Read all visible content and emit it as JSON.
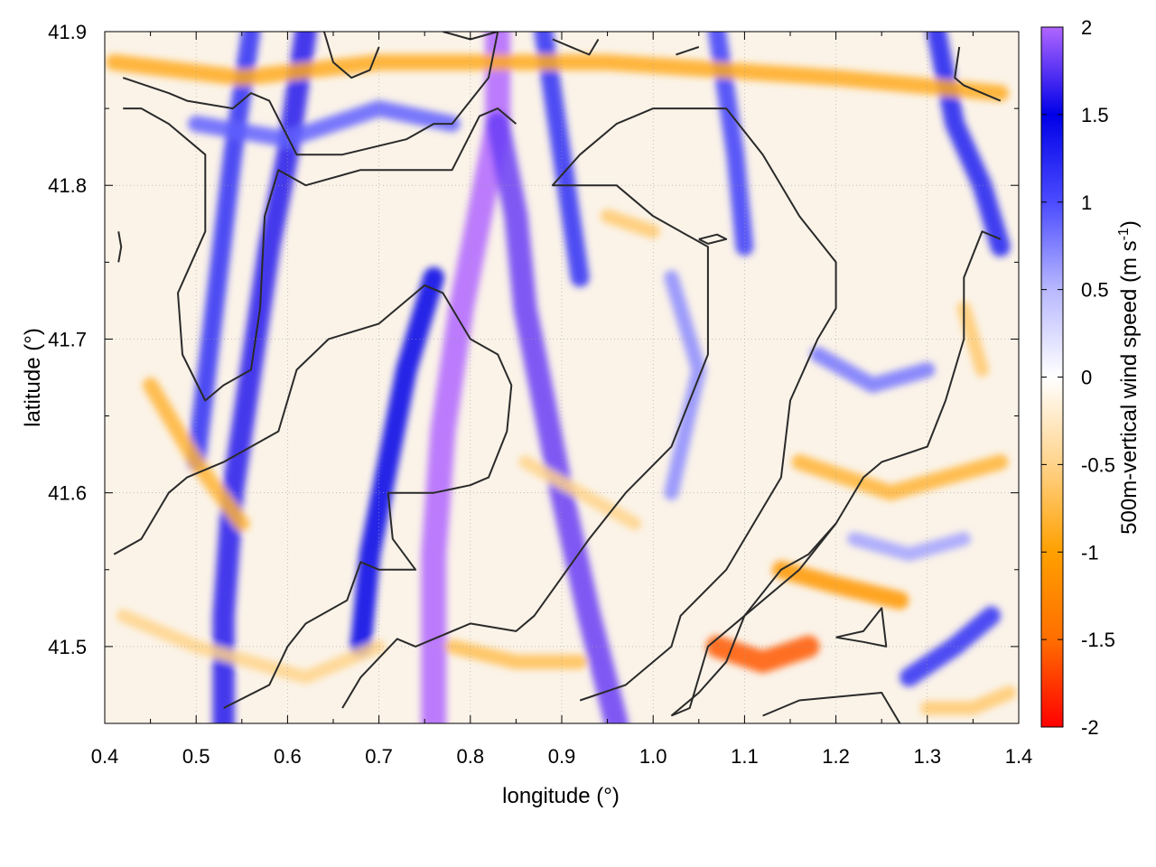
{
  "chart_data": {
    "type": "heatmap",
    "title": "",
    "xlabel": "longitude (°)",
    "ylabel": "latitude (°)",
    "xlim": [
      0.4,
      1.4
    ],
    "ylim": [
      41.45,
      41.9
    ],
    "x_ticks": [
      "0.4",
      "0.5",
      "0.6",
      "0.7",
      "0.8",
      "0.9",
      "1.0",
      "1.1",
      "1.2",
      "1.3",
      "1.4"
    ],
    "y_ticks": [
      "41.5",
      "41.6",
      "41.7",
      "41.8",
      "41.9"
    ],
    "grid": true,
    "colorbar": {
      "label": "500m-vertical wind speed",
      "unit_prefix": "(m s",
      "unit_exp": "-1",
      "unit_suffix": ")",
      "range": [
        -2,
        2
      ],
      "ticks": [
        "2",
        "1.5",
        "1",
        "0.5",
        "0",
        "-0.5",
        "-1",
        "-1.5",
        "-2"
      ],
      "colors": [
        "#ff0000",
        "#ff6e00",
        "#ffa000",
        "#ffd38a",
        "#ffffff",
        "#b8b8ff",
        "#4b4bff",
        "#0000e8",
        "#b066ff"
      ]
    },
    "bands": [
      {
        "name": "band",
        "value": 2.0,
        "points": [
          [
            0.83,
            41.9
          ],
          [
            0.83,
            41.84
          ],
          [
            0.81,
            41.78
          ],
          [
            0.79,
            41.72
          ],
          [
            0.77,
            41.64
          ],
          [
            0.76,
            41.56
          ],
          [
            0.76,
            41.45
          ]
        ]
      },
      {
        "name": "band",
        "value": 1.8,
        "points": [
          [
            0.83,
            41.84
          ],
          [
            0.85,
            41.78
          ],
          [
            0.86,
            41.72
          ],
          [
            0.88,
            41.66
          ],
          [
            0.9,
            41.6
          ],
          [
            0.93,
            41.52
          ],
          [
            0.96,
            41.45
          ]
        ]
      },
      {
        "name": "band",
        "value": 1.6,
        "points": [
          [
            0.62,
            41.9
          ],
          [
            0.6,
            41.82
          ],
          [
            0.58,
            41.76
          ],
          [
            0.56,
            41.68
          ],
          [
            0.54,
            41.6
          ],
          [
            0.53,
            41.52
          ],
          [
            0.53,
            41.45
          ]
        ]
      },
      {
        "name": "band",
        "value": 1.5,
        "points": [
          [
            0.76,
            41.74
          ],
          [
            0.73,
            41.68
          ],
          [
            0.71,
            41.62
          ],
          [
            0.69,
            41.56
          ],
          [
            0.68,
            41.5
          ]
        ]
      },
      {
        "name": "band",
        "value": 1.2,
        "points": [
          [
            0.56,
            41.9
          ],
          [
            0.54,
            41.82
          ],
          [
            0.52,
            41.72
          ],
          [
            0.5,
            41.62
          ]
        ]
      },
      {
        "name": "band",
        "value": 1.2,
        "points": [
          [
            0.88,
            41.9
          ],
          [
            0.9,
            41.82
          ],
          [
            0.92,
            41.74
          ]
        ]
      },
      {
        "name": "band",
        "value": 1.3,
        "points": [
          [
            1.31,
            41.9
          ],
          [
            1.33,
            41.84
          ],
          [
            1.36,
            41.8
          ],
          [
            1.38,
            41.76
          ]
        ]
      },
      {
        "name": "band",
        "value": 1.1,
        "points": [
          [
            1.07,
            41.9
          ],
          [
            1.09,
            41.82
          ],
          [
            1.1,
            41.76
          ]
        ]
      },
      {
        "name": "band",
        "value": 1.2,
        "points": [
          [
            1.37,
            41.52
          ],
          [
            1.33,
            41.5
          ],
          [
            1.28,
            41.48
          ]
        ]
      },
      {
        "name": "band",
        "value": 0.9,
        "points": [
          [
            0.5,
            41.84
          ],
          [
            0.6,
            41.83
          ],
          [
            0.7,
            41.85
          ],
          [
            0.78,
            41.84
          ]
        ]
      },
      {
        "name": "band",
        "value": 0.8,
        "points": [
          [
            1.18,
            41.69
          ],
          [
            1.24,
            41.67
          ],
          [
            1.3,
            41.68
          ]
        ]
      },
      {
        "name": "band",
        "value": 0.7,
        "points": [
          [
            1.02,
            41.74
          ],
          [
            1.05,
            41.68
          ],
          [
            1.02,
            41.6
          ]
        ]
      },
      {
        "name": "band",
        "value": 0.6,
        "points": [
          [
            1.22,
            41.57
          ],
          [
            1.28,
            41.56
          ],
          [
            1.34,
            41.57
          ]
        ]
      },
      {
        "name": "band",
        "value": -1.6,
        "points": [
          [
            1.07,
            41.5
          ],
          [
            1.12,
            41.49
          ],
          [
            1.17,
            41.5
          ]
        ]
      },
      {
        "name": "band",
        "value": -1.1,
        "points": [
          [
            1.14,
            41.55
          ],
          [
            1.2,
            41.54
          ],
          [
            1.27,
            41.53
          ]
        ]
      },
      {
        "name": "band",
        "value": -0.9,
        "points": [
          [
            0.41,
            41.88
          ],
          [
            0.55,
            41.87
          ],
          [
            0.7,
            41.88
          ],
          [
            0.95,
            41.88
          ],
          [
            1.2,
            41.87
          ],
          [
            1.38,
            41.86
          ]
        ]
      },
      {
        "name": "band",
        "value": -0.8,
        "points": [
          [
            0.45,
            41.67
          ],
          [
            0.5,
            41.62
          ],
          [
            0.55,
            41.58
          ]
        ]
      },
      {
        "name": "band",
        "value": -0.8,
        "points": [
          [
            1.16,
            41.62
          ],
          [
            1.26,
            41.6
          ],
          [
            1.38,
            41.62
          ]
        ]
      },
      {
        "name": "band",
        "value": -0.7,
        "points": [
          [
            0.78,
            41.5
          ],
          [
            0.85,
            41.49
          ],
          [
            0.92,
            41.49
          ]
        ]
      },
      {
        "name": "band",
        "value": -0.6,
        "points": [
          [
            0.95,
            41.78
          ],
          [
            1.0,
            41.77
          ]
        ]
      },
      {
        "name": "band",
        "value": -0.6,
        "points": [
          [
            1.34,
            41.72
          ],
          [
            1.36,
            41.68
          ]
        ]
      },
      {
        "name": "band",
        "value": -0.5,
        "points": [
          [
            0.42,
            41.52
          ],
          [
            0.5,
            41.5
          ],
          [
            0.62,
            41.48
          ],
          [
            0.7,
            41.5
          ]
        ]
      },
      {
        "name": "band",
        "value": -0.5,
        "points": [
          [
            0.86,
            41.62
          ],
          [
            0.92,
            41.6
          ],
          [
            0.98,
            41.58
          ]
        ]
      },
      {
        "name": "band",
        "value": -0.6,
        "points": [
          [
            1.3,
            41.46
          ],
          [
            1.35,
            41.46
          ],
          [
            1.39,
            41.47
          ]
        ]
      }
    ],
    "contours": [
      {
        "points": [
          [
            0.42,
            41.87
          ],
          [
            0.47,
            41.86
          ],
          [
            0.49,
            41.855
          ],
          [
            0.54,
            41.85
          ],
          [
            0.56,
            41.86
          ],
          [
            0.58,
            41.855
          ],
          [
            0.61,
            41.82
          ],
          [
            0.66,
            41.82
          ],
          [
            0.73,
            41.83
          ],
          [
            0.76,
            41.84
          ],
          [
            0.78,
            41.84
          ],
          [
            0.8,
            41.855
          ],
          [
            0.82,
            41.87
          ],
          [
            0.83,
            41.9
          ]
        ]
      },
      {
        "points": [
          [
            0.42,
            41.85
          ],
          [
            0.44,
            41.85
          ],
          [
            0.47,
            41.84
          ],
          [
            0.51,
            41.82
          ],
          [
            0.51,
            41.77
          ],
          [
            0.48,
            41.73
          ],
          [
            0.485,
            41.69
          ],
          [
            0.51,
            41.66
          ],
          [
            0.53,
            41.67
          ],
          [
            0.56,
            41.68
          ],
          [
            0.57,
            41.72
          ],
          [
            0.575,
            41.78
          ],
          [
            0.59,
            41.81
          ],
          [
            0.62,
            41.8
          ],
          [
            0.68,
            41.81
          ],
          [
            0.78,
            41.81
          ],
          [
            0.81,
            41.845
          ],
          [
            0.83,
            41.85
          ],
          [
            0.85,
            41.84
          ]
        ]
      },
      {
        "points": [
          [
            0.41,
            41.56
          ],
          [
            0.44,
            41.57
          ],
          [
            0.47,
            41.6
          ],
          [
            0.49,
            41.61
          ],
          [
            0.53,
            41.62
          ],
          [
            0.59,
            41.64
          ],
          [
            0.61,
            41.68
          ],
          [
            0.645,
            41.7
          ],
          [
            0.7,
            41.71
          ],
          [
            0.75,
            41.735
          ],
          [
            0.77,
            41.73
          ],
          [
            0.8,
            41.7
          ],
          [
            0.83,
            41.69
          ],
          [
            0.845,
            41.67
          ],
          [
            0.84,
            41.64
          ],
          [
            0.82,
            41.61
          ],
          [
            0.8,
            41.605
          ],
          [
            0.76,
            41.6
          ],
          [
            0.71,
            41.6
          ],
          [
            0.715,
            41.57
          ],
          [
            0.74,
            41.55
          ],
          [
            0.735,
            41.55
          ],
          [
            0.7,
            41.55
          ],
          [
            0.68,
            41.555
          ],
          [
            0.665,
            41.53
          ],
          [
            0.62,
            41.515
          ],
          [
            0.6,
            41.5
          ],
          [
            0.58,
            41.475
          ],
          [
            0.53,
            41.46
          ]
        ]
      },
      {
        "points": [
          [
            0.66,
            41.46
          ],
          [
            0.68,
            41.48
          ],
          [
            0.72,
            41.505
          ],
          [
            0.74,
            41.5
          ],
          [
            0.8,
            41.515
          ],
          [
            0.85,
            41.51
          ],
          [
            0.87,
            41.52
          ],
          [
            0.9,
            41.545
          ],
          [
            0.93,
            41.57
          ],
          [
            0.97,
            41.6
          ],
          [
            1.02,
            41.63
          ],
          [
            1.06,
            41.69
          ],
          [
            1.06,
            41.76
          ],
          [
            1.0,
            41.78
          ],
          [
            0.96,
            41.8
          ],
          [
            0.89,
            41.8
          ],
          [
            0.92,
            41.82
          ],
          [
            0.96,
            41.84
          ],
          [
            1.0,
            41.85
          ],
          [
            1.08,
            41.85
          ],
          [
            1.12,
            41.82
          ],
          [
            1.16,
            41.78
          ],
          [
            1.2,
            41.75
          ],
          [
            1.2,
            41.72
          ],
          [
            1.18,
            41.7
          ],
          [
            1.15,
            41.66
          ],
          [
            1.14,
            41.61
          ],
          [
            1.12,
            41.59
          ],
          [
            1.08,
            41.55
          ],
          [
            1.03,
            41.52
          ],
          [
            1.02,
            41.5
          ],
          [
            1.0,
            41.49
          ],
          [
            0.97,
            41.475
          ],
          [
            0.92,
            41.465
          ]
        ]
      },
      {
        "points": [
          [
            1.02,
            41.455
          ],
          [
            1.04,
            41.46
          ],
          [
            1.06,
            41.5
          ],
          [
            1.1,
            41.52
          ],
          [
            1.16,
            41.55
          ],
          [
            1.2,
            41.58
          ],
          [
            1.23,
            41.61
          ],
          [
            1.25,
            41.62
          ],
          [
            1.3,
            41.63
          ],
          [
            1.32,
            41.66
          ],
          [
            1.34,
            41.7
          ],
          [
            1.34,
            41.74
          ],
          [
            1.36,
            41.77
          ],
          [
            1.38,
            41.765
          ]
        ]
      },
      {
        "points": [
          [
            1.02,
            41.455
          ],
          [
            1.05,
            41.47
          ],
          [
            1.08,
            41.49
          ],
          [
            1.1,
            41.52
          ],
          [
            1.14,
            41.55
          ],
          [
            1.17,
            41.56
          ],
          [
            1.2,
            41.58
          ]
        ]
      },
      {
        "points": [
          [
            1.12,
            41.455
          ],
          [
            1.16,
            41.465
          ],
          [
            1.25,
            41.47
          ],
          [
            1.27,
            41.45
          ]
        ]
      },
      {
        "points": [
          [
            1.2,
            41.506
          ],
          [
            1.23,
            41.51
          ],
          [
            1.25,
            41.525
          ],
          [
            1.255,
            41.5
          ],
          [
            1.23,
            41.503
          ],
          [
            1.2,
            41.506
          ]
        ]
      },
      {
        "points": [
          [
            1.05,
            41.765
          ],
          [
            1.07,
            41.768
          ],
          [
            1.08,
            41.765
          ],
          [
            1.06,
            41.762
          ],
          [
            1.05,
            41.765
          ]
        ]
      },
      {
        "points": [
          [
            0.64,
            41.9
          ],
          [
            0.65,
            41.88
          ],
          [
            0.67,
            41.87
          ],
          [
            0.69,
            41.875
          ],
          [
            0.7,
            41.89
          ]
        ]
      },
      {
        "points": [
          [
            0.89,
            41.895
          ],
          [
            0.93,
            41.885
          ],
          [
            0.94,
            41.895
          ]
        ]
      },
      {
        "points": [
          [
            1.025,
            41.885
          ],
          [
            1.05,
            41.89
          ]
        ]
      },
      {
        "points": [
          [
            1.335,
            41.89
          ],
          [
            1.33,
            41.87
          ],
          [
            1.34,
            41.865
          ],
          [
            1.38,
            41.855
          ]
        ]
      },
      {
        "points": [
          [
            0.415,
            41.77
          ],
          [
            0.418,
            41.76
          ],
          [
            0.415,
            41.75
          ]
        ]
      },
      {
        "points": [
          [
            0.77,
            41.9
          ],
          [
            0.8,
            41.895
          ],
          [
            0.83,
            41.9
          ]
        ]
      }
    ]
  }
}
